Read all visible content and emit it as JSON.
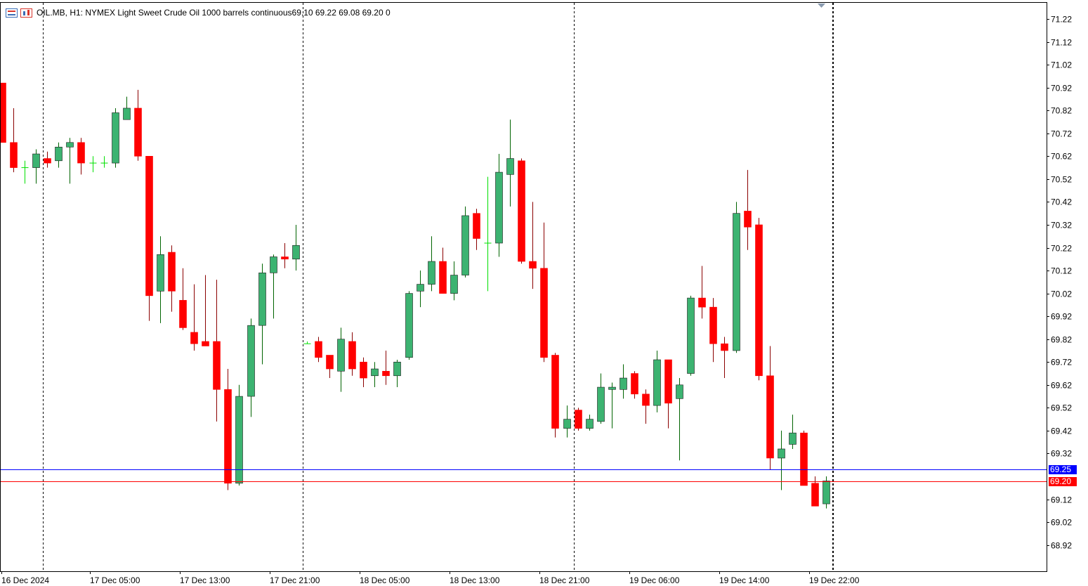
{
  "header": {
    "symbol_line": "OIL.MB, H1:  NYMEX Light Sweet Crude Oil 1000 barrels continuous",
    "ohlc": "69.10 69.22 69.08 69.20  0"
  },
  "colors": {
    "bull": "#3cb371",
    "bear": "#ff0000",
    "doji": "#00e000",
    "ask_line": "#0000ff",
    "bid_line": "#ff0000",
    "grid": "#000000",
    "text": "#000000"
  },
  "price_tags": {
    "ask": "69.25",
    "bid": "69.20"
  },
  "chart_data": {
    "type": "candlestick",
    "timeframe": "H1",
    "ylim": [
      68.85,
      71.27
    ],
    "y_ticks": [
      "71.22",
      "71.12",
      "71.02",
      "70.92",
      "70.82",
      "70.72",
      "70.62",
      "70.52",
      "70.42",
      "70.32",
      "70.22",
      "70.12",
      "70.02",
      "69.92",
      "69.82",
      "69.72",
      "69.62",
      "69.52",
      "69.42",
      "69.32",
      "69.12",
      "69.02",
      "68.92"
    ],
    "x_labels": [
      "16 Dec 2024",
      "17 Dec 05:00",
      "17 Dec 13:00",
      "17 Dec 21:00",
      "18 Dec 05:00",
      "18 Dec 13:00",
      "18 Dec 21:00",
      "19 Dec 06:00",
      "19 Dec 14:00",
      "19 Dec 22:00"
    ],
    "day_separators_after_bar": [
      3,
      26,
      50,
      73
    ],
    "ask_price": 69.25,
    "bid_price": 69.2,
    "candles": [
      [
        70.94,
        70.94,
        70.68,
        70.68
      ],
      [
        70.68,
        70.83,
        70.55,
        70.57
      ],
      [
        70.57,
        70.6,
        70.5,
        70.57
      ],
      [
        70.57,
        70.65,
        70.5,
        70.63
      ],
      [
        70.61,
        70.64,
        70.57,
        70.59
      ],
      [
        70.6,
        70.68,
        70.57,
        70.66
      ],
      [
        70.66,
        70.7,
        70.5,
        70.68
      ],
      [
        70.68,
        70.7,
        70.54,
        70.59
      ],
      [
        70.59,
        70.62,
        70.55,
        70.59
      ],
      [
        70.59,
        70.62,
        70.57,
        70.59
      ],
      [
        70.59,
        70.83,
        70.57,
        70.81
      ],
      [
        70.78,
        70.88,
        70.78,
        70.83
      ],
      [
        70.83,
        70.91,
        70.6,
        70.62
      ],
      [
        70.62,
        70.62,
        69.9,
        70.01
      ],
      [
        70.03,
        70.27,
        69.89,
        70.19
      ],
      [
        70.2,
        70.23,
        69.94,
        70.03
      ],
      [
        69.99,
        70.13,
        69.86,
        69.87
      ],
      [
        69.85,
        70.06,
        69.77,
        69.8
      ],
      [
        69.81,
        70.1,
        69.79,
        69.79
      ],
      [
        69.81,
        70.08,
        69.46,
        69.6
      ],
      [
        69.6,
        69.69,
        69.16,
        69.19
      ],
      [
        69.19,
        69.62,
        69.18,
        69.57
      ],
      [
        69.57,
        69.91,
        69.48,
        69.88
      ],
      [
        69.88,
        70.15,
        69.71,
        70.11
      ],
      [
        70.11,
        70.19,
        69.91,
        70.18
      ],
      [
        70.18,
        70.24,
        70.13,
        70.17
      ],
      [
        70.17,
        70.32,
        70.12,
        70.23
      ],
      [
        69.8,
        69.81,
        69.8,
        69.8
      ],
      [
        69.81,
        69.83,
        69.72,
        69.74
      ],
      [
        69.75,
        69.75,
        69.65,
        69.69
      ],
      [
        69.68,
        69.87,
        69.59,
        69.82
      ],
      [
        69.81,
        69.85,
        69.66,
        69.69
      ],
      [
        69.72,
        69.74,
        69.61,
        69.65
      ],
      [
        69.66,
        69.72,
        69.61,
        69.69
      ],
      [
        69.68,
        69.77,
        69.62,
        69.66
      ],
      [
        69.66,
        69.73,
        69.61,
        69.72
      ],
      [
        69.74,
        70.03,
        69.73,
        70.02
      ],
      [
        70.03,
        70.12,
        69.96,
        70.06
      ],
      [
        70.06,
        70.27,
        70.03,
        70.16
      ],
      [
        70.16,
        70.22,
        70.02,
        70.02
      ],
      [
        70.02,
        70.16,
        69.99,
        70.1
      ],
      [
        70.1,
        70.4,
        70.09,
        70.36
      ],
      [
        70.37,
        70.39,
        70.21,
        70.26
      ],
      [
        70.24,
        70.53,
        70.03,
        70.24
      ],
      [
        70.24,
        70.63,
        70.18,
        70.55
      ],
      [
        70.54,
        70.78,
        70.4,
        70.61
      ],
      [
        70.6,
        70.61,
        70.15,
        70.16
      ],
      [
        70.16,
        70.42,
        70.04,
        70.13
      ],
      [
        70.13,
        70.33,
        69.72,
        69.74
      ],
      [
        69.75,
        69.76,
        69.39,
        69.43
      ],
      [
        69.43,
        69.53,
        69.39,
        69.47
      ],
      [
        69.51,
        69.52,
        69.42,
        69.43
      ],
      [
        69.43,
        69.49,
        69.42,
        69.47
      ],
      [
        69.46,
        69.67,
        69.45,
        69.61
      ],
      [
        69.6,
        69.63,
        69.43,
        69.61
      ],
      [
        69.6,
        69.71,
        69.56,
        69.65
      ],
      [
        69.67,
        69.68,
        69.56,
        69.58
      ],
      [
        69.58,
        69.6,
        69.45,
        69.53
      ],
      [
        69.53,
        69.77,
        69.5,
        69.73
      ],
      [
        69.73,
        69.73,
        69.43,
        69.54
      ],
      [
        69.56,
        69.65,
        69.29,
        69.62
      ],
      [
        69.67,
        70.01,
        69.66,
        70.0
      ],
      [
        70.0,
        70.14,
        69.91,
        69.96
      ],
      [
        69.96,
        70.0,
        69.72,
        69.8
      ],
      [
        69.8,
        69.83,
        69.65,
        69.77
      ],
      [
        69.77,
        70.42,
        69.76,
        70.37
      ],
      [
        70.38,
        70.56,
        70.21,
        70.31
      ],
      [
        70.32,
        70.35,
        69.64,
        69.66
      ],
      [
        69.66,
        69.79,
        69.25,
        69.3
      ],
      [
        69.3,
        69.42,
        69.16,
        69.34
      ],
      [
        69.36,
        69.49,
        69.34,
        69.41
      ],
      [
        69.41,
        69.42,
        69.18,
        69.18
      ],
      [
        69.19,
        69.22,
        69.09,
        69.09
      ],
      [
        69.1,
        69.22,
        69.08,
        69.2
      ]
    ]
  }
}
